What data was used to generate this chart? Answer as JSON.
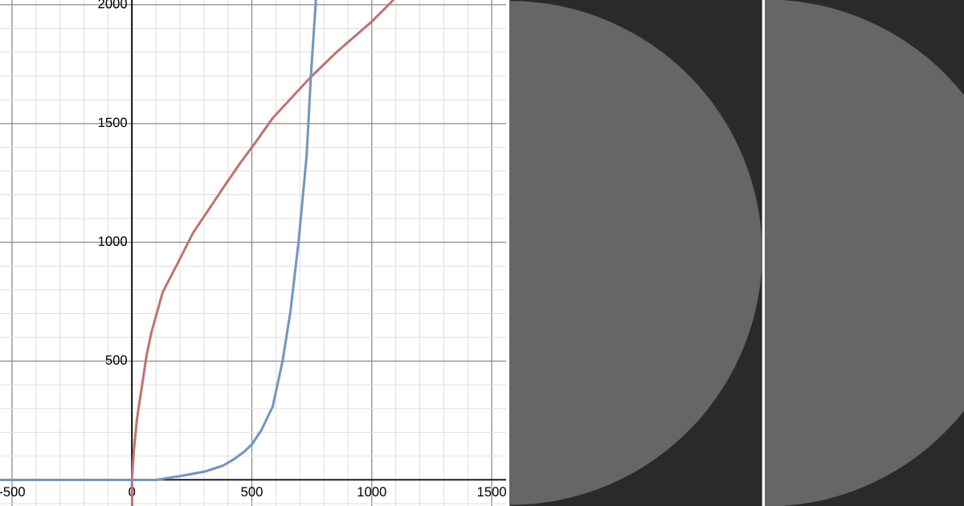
{
  "chart_data": {
    "type": "line",
    "series": [
      {
        "color": "#c0746e",
        "x": [
          1,
          0,
          8,
          21,
          41,
          61,
          81,
          128,
          200,
          255,
          388,
          453,
          515,
          587,
          746,
          856,
          1000,
          1090
        ],
        "values": [
          -110,
          0,
          123,
          256,
          389,
          523,
          620,
          789,
          930,
          1040,
          1240,
          1336,
          1420,
          1523,
          1696,
          1803,
          1929,
          2020
        ]
      },
      {
        "color": "#7296c0",
        "x": [
          -550,
          0,
          100,
          201,
          308,
          380,
          430,
          470,
          500,
          540,
          587,
          628,
          661,
          695,
          728,
          746,
          767
        ],
        "values": [
          0,
          0,
          0,
          16,
          36,
          60,
          90,
          120,
          149,
          210,
          309,
          500,
          709,
          1004,
          1360,
          1696,
          2020
        ]
      }
    ],
    "xlim": [
      -550,
      1560
    ],
    "ylim": [
      -110,
      2020
    ],
    "xticks": [
      -500,
      0,
      500,
      1000,
      1500
    ],
    "yticks": [
      500,
      1000,
      1500,
      2000
    ],
    "grid": true,
    "marker": "none",
    "line_style": "solid"
  }
}
